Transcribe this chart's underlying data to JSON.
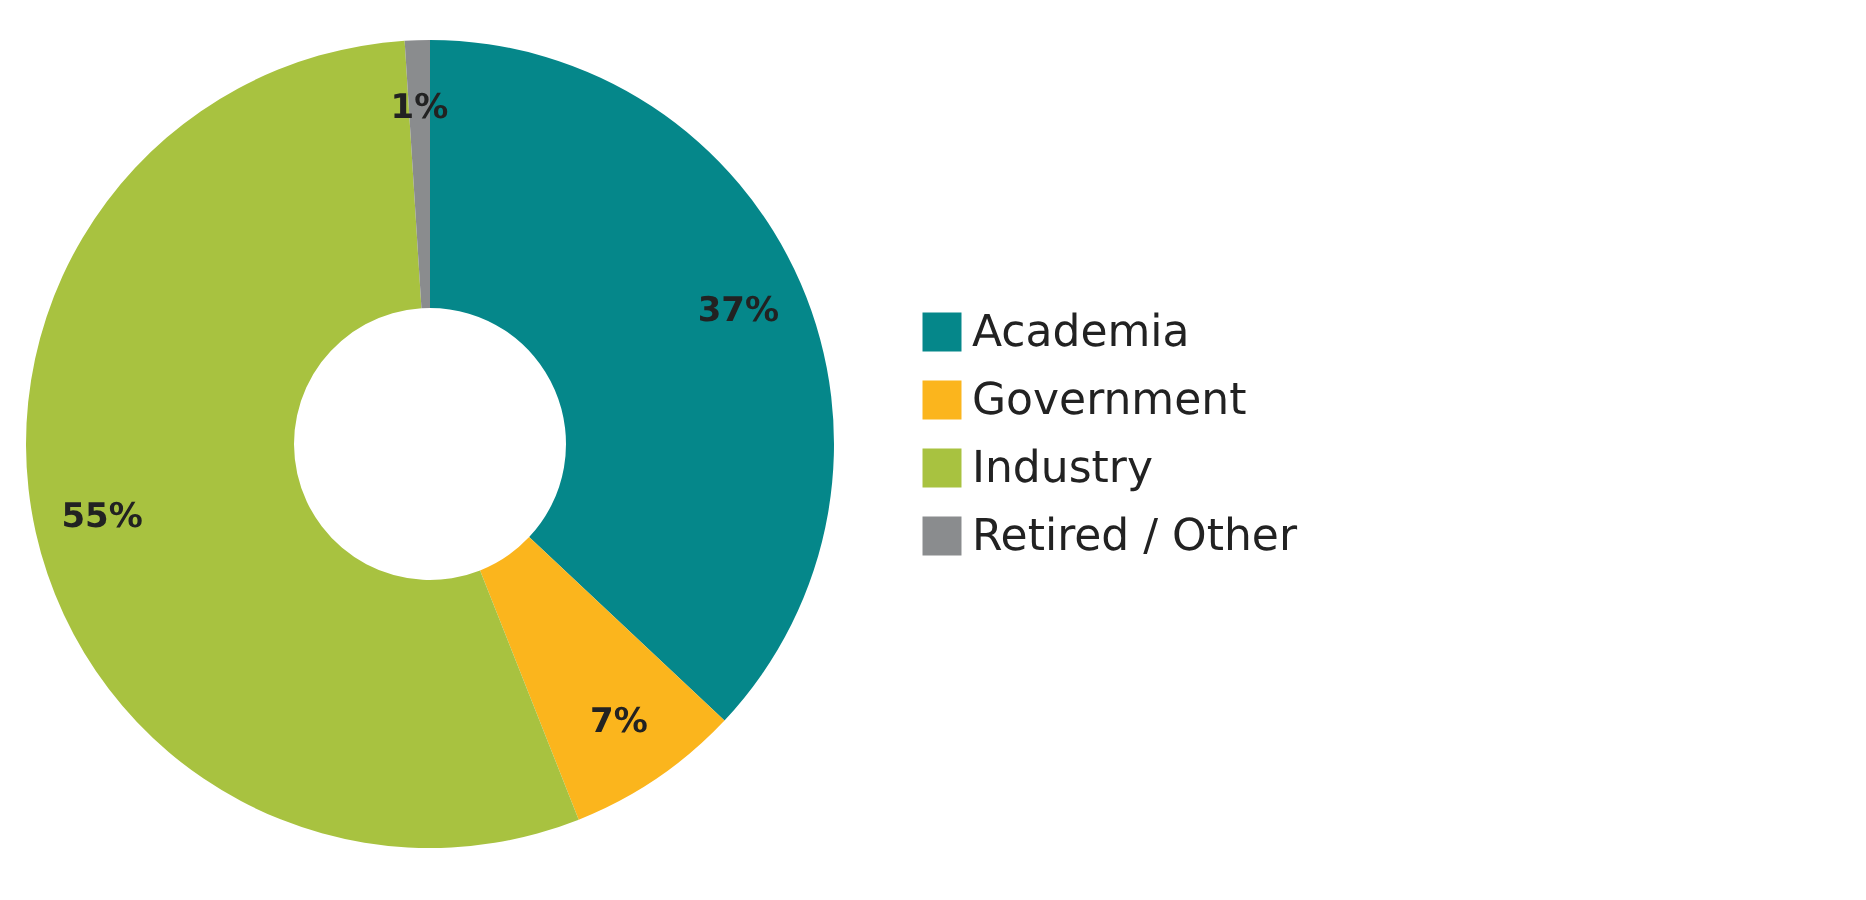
{
  "chart_data": {
    "type": "donut",
    "categories": [
      "Academia",
      "Government",
      "Industry",
      "Retired / Other"
    ],
    "values": [
      37,
      7,
      55,
      1
    ],
    "colors": [
      "#05878a",
      "#fbb51d",
      "#a8c240",
      "#8a8c8e"
    ],
    "value_labels": [
      "37%",
      "7%",
      "55%",
      "1%"
    ],
    "legend": "right"
  }
}
